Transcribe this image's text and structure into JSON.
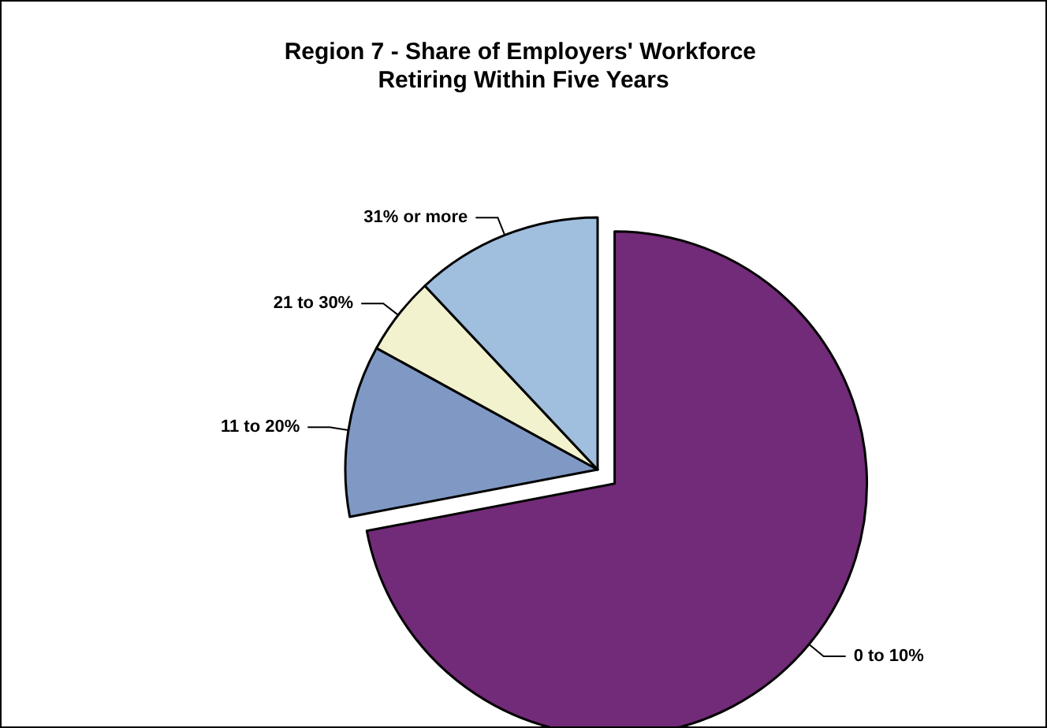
{
  "chart_data": {
    "type": "pie",
    "title": "Region 7 - Share of Employers' Workforce Retiring Within Five Years",
    "categories": [
      "0 to 10%",
      "11 to 20%",
      "21 to 30%",
      "31% or more"
    ],
    "values": [
      72,
      11,
      5,
      12
    ],
    "colors": [
      "#722b78",
      "#7f99c4",
      "#f2f2cf",
      "#a0bedd"
    ]
  }
}
